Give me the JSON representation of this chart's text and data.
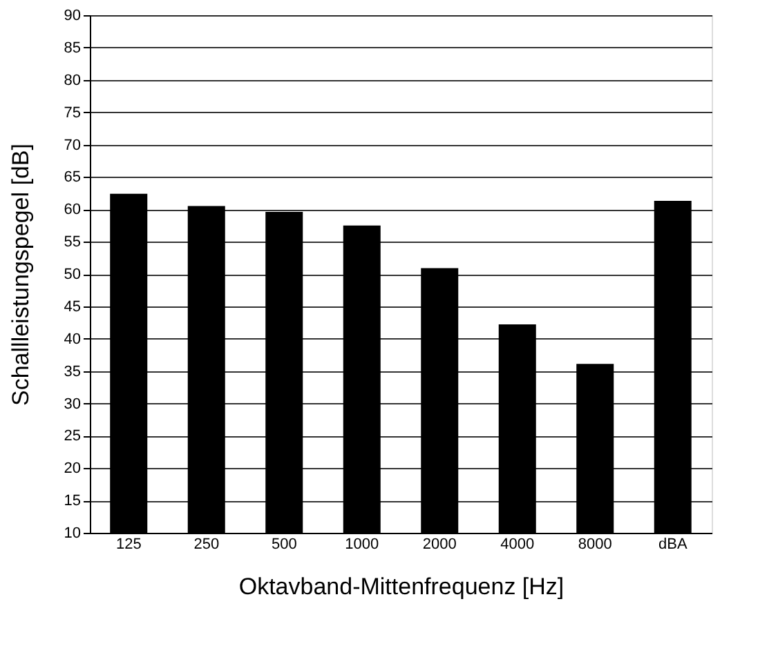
{
  "chart_data": {
    "type": "bar",
    "xlabel": "Oktavband-Mittenfrequenz [Hz]",
    "ylabel": "Schallleistungspegel [dB]",
    "categories": [
      "125",
      "250",
      "500",
      "1000",
      "2000",
      "4000",
      "8000",
      "dBA"
    ],
    "values": [
      62.3,
      60.4,
      59.5,
      57.4,
      50.8,
      42.1,
      36.0,
      61.2
    ],
    "color": "#000000",
    "ylim": [
      10,
      90
    ],
    "yticks": [
      10,
      15,
      20,
      25,
      30,
      35,
      40,
      45,
      50,
      55,
      60,
      65,
      70,
      75,
      80,
      85,
      90
    ],
    "grid": "y"
  }
}
